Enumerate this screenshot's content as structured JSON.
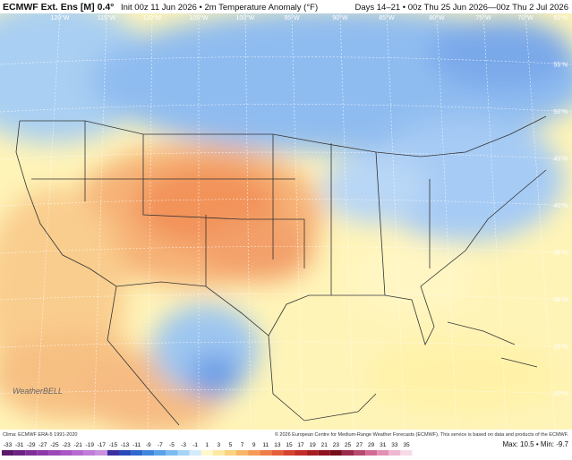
{
  "header": {
    "model": "ECMWF Ext. Ens [M] 0.4°",
    "init": "Init 00z 11 Jun 2026 • 2m Temperature Anomaly (°F)",
    "valid": "Days 14–21 • 00z Thu 25 Jun 2026—00z Thu 2 Jul 2026"
  },
  "map": {
    "lon_labels": [
      "120°W",
      "115°W",
      "110°W",
      "105°W",
      "100°W",
      "95°W",
      "90°W",
      "85°W",
      "80°W",
      "75°W",
      "70°W"
    ],
    "lat_labels": [
      "60°N",
      "55°N",
      "50°N",
      "45°N",
      "40°N",
      "35°N",
      "30°N",
      "25°N",
      "20°N"
    ],
    "logo": "WeatherBELL"
  },
  "footer": {
    "clima": "Clima: ECMWF ERA-5 1991-2020",
    "copyright": "© 2026 European Centre for Medium-Range Weather Forecasts (ECMWF). This service is based on data and products of the ECMWF.",
    "stats": "Max: 10.5 • Min: -9.7"
  },
  "colorbar": {
    "labels": [
      "-33",
      "-31",
      "-29",
      "-27",
      "-25",
      "-23",
      "-21",
      "-19",
      "-17",
      "-15",
      "-13",
      "-11",
      "-9",
      "-7",
      "-5",
      "-3",
      "-1",
      "1",
      "3",
      "5",
      "7",
      "9",
      "11",
      "13",
      "15",
      "17",
      "19",
      "21",
      "23",
      "25",
      "27",
      "29",
      "31",
      "33",
      "35"
    ]
  }
}
